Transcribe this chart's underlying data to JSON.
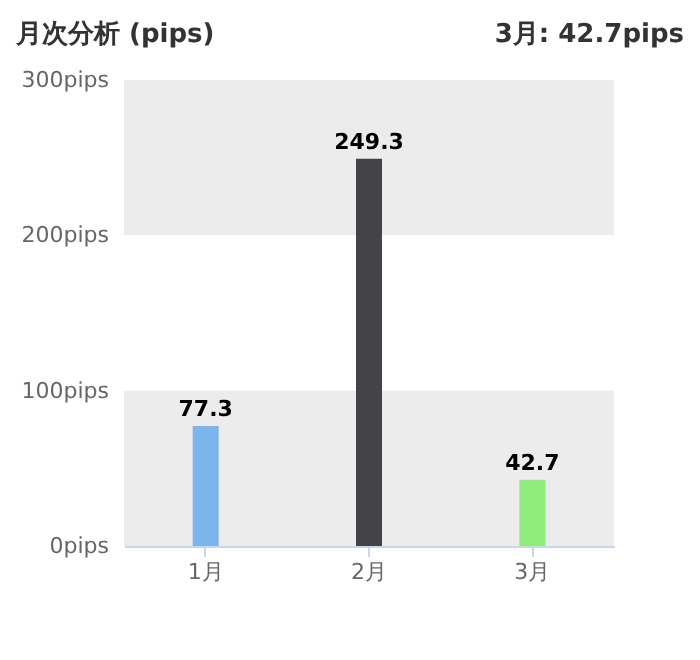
{
  "chart_data": {
    "type": "bar",
    "title": "月次分析 (pips)",
    "subtitle": "3月: 42.7pips",
    "categories": [
      "1月",
      "2月",
      "3月"
    ],
    "values": [
      77.3,
      249.3,
      42.7
    ],
    "colors": [
      "#7cb5ec",
      "#434348",
      "#90ed7d"
    ],
    "ylim": [
      0,
      300
    ],
    "yticks": [
      {
        "value": 0,
        "label": "0pips"
      },
      {
        "value": 100,
        "label": "100pips"
      },
      {
        "value": 200,
        "label": "200pips"
      },
      {
        "value": 300,
        "label": "300pips"
      }
    ],
    "bands": [
      {
        "axis": "y",
        "from": 0,
        "to": 100,
        "color": "#ececec"
      },
      {
        "axis": "y",
        "from": 200,
        "to": 300,
        "color": "#ececec"
      }
    ],
    "data_labels": true
  }
}
